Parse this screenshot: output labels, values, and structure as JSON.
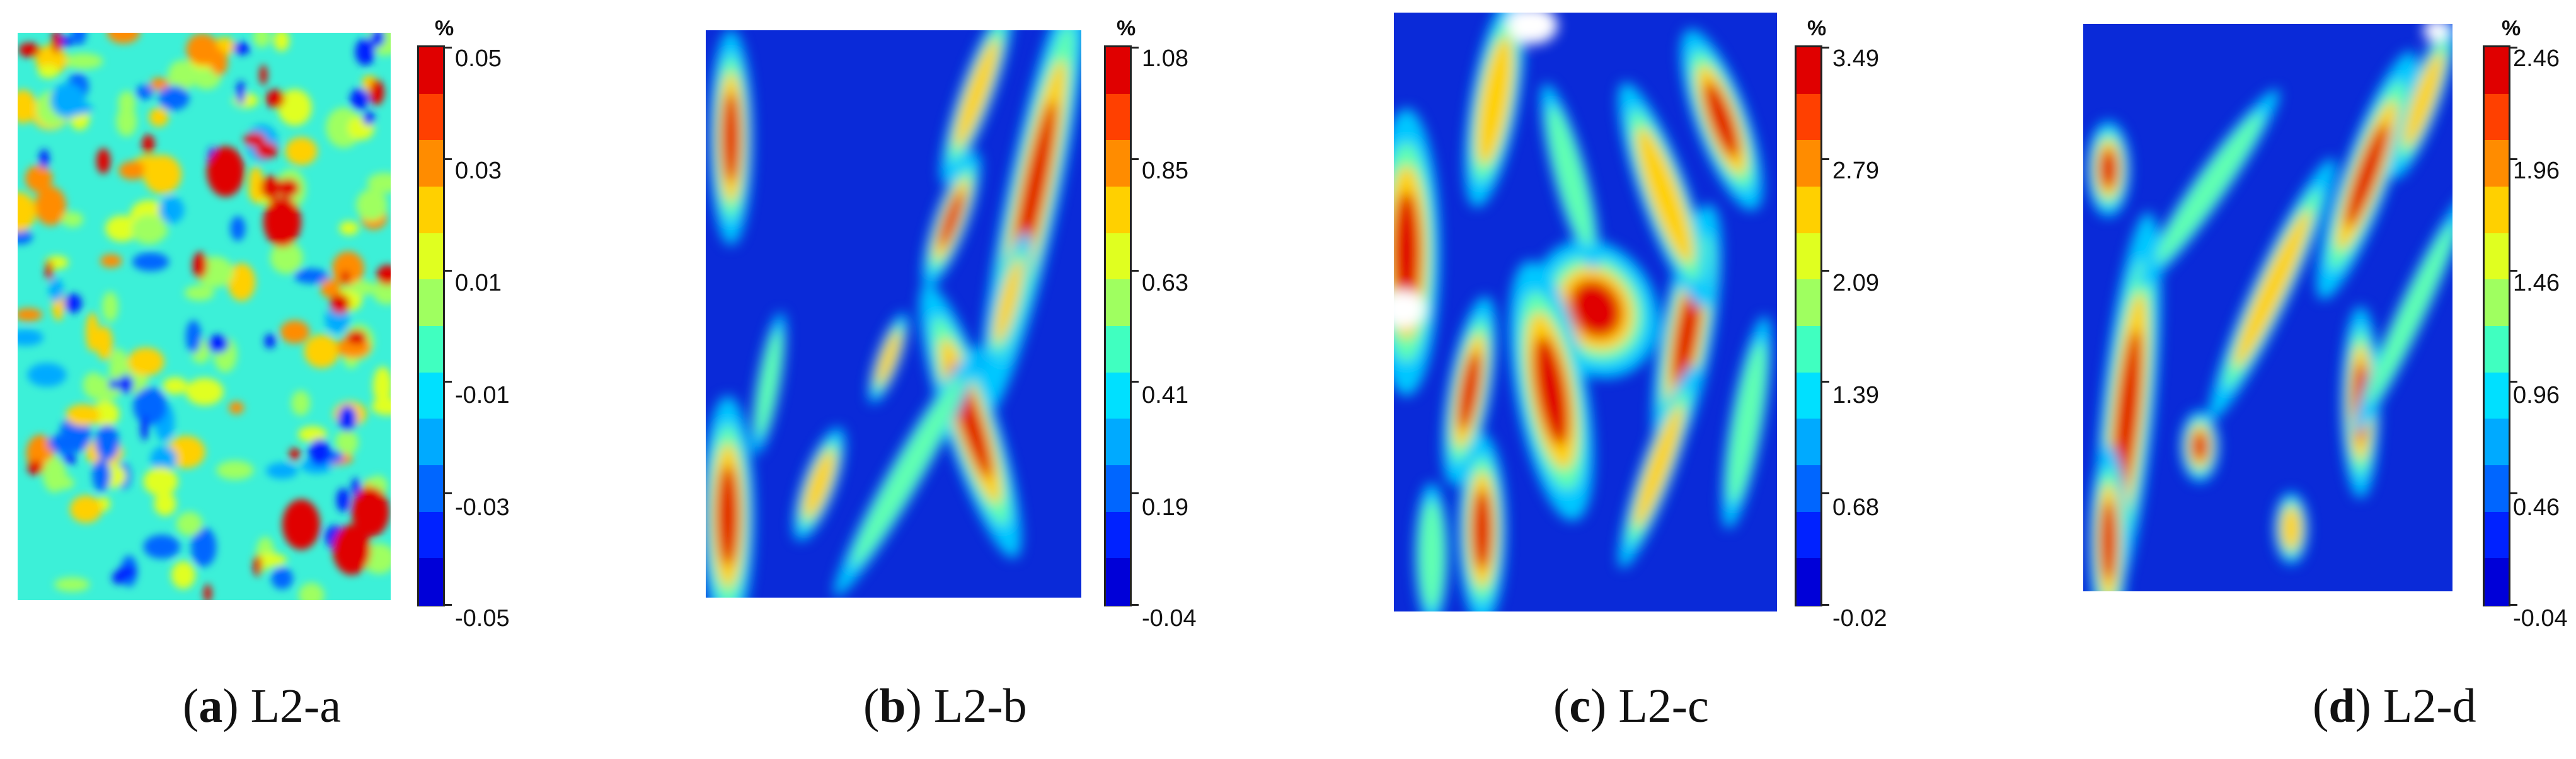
{
  "colorbar_colors": [
    "#0000d8",
    "#0022ff",
    "#0066ff",
    "#00aaff",
    "#00e0ff",
    "#40ffc0",
    "#9fff60",
    "#e0ff20",
    "#ffd000",
    "#ff8c00",
    "#ff4000",
    "#e00000"
  ],
  "unit": "%",
  "panels": [
    {
      "letter": "a",
      "label": "L2-a",
      "ticks": [
        "0.05",
        "0.03",
        "0.01",
        "-0.01",
        "-0.03",
        "-0.05"
      ],
      "background_color": "#3cf0d8"
    },
    {
      "letter": "b",
      "label": "L2-b",
      "ticks": [
        "1.08",
        "0.85",
        "0.63",
        "0.41",
        "0.19",
        "-0.04"
      ],
      "background_color": "#0a2ad8"
    },
    {
      "letter": "c",
      "label": "L2-c",
      "ticks": [
        "3.49",
        "2.79",
        "2.09",
        "1.39",
        "0.68",
        "-0.02"
      ],
      "background_color": "#0a2ad8"
    },
    {
      "letter": "d",
      "label": "L2-d",
      "ticks": [
        "2.46",
        "1.96",
        "1.46",
        "0.96",
        "0.46",
        "-0.04"
      ],
      "background_color": "#0a2ad8"
    }
  ]
}
